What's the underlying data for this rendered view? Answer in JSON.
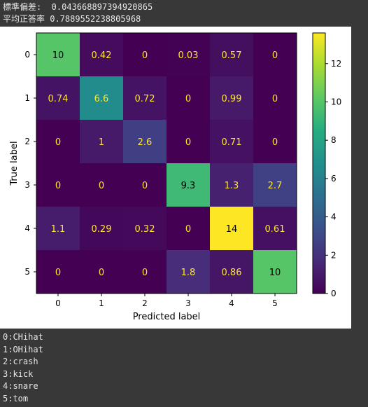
{
  "stats": {
    "std_text": "標準偏差:  0.043668897394920865",
    "acc_text": "平均正答率 0.7889552238805968"
  },
  "chart_data": {
    "type": "heatmap",
    "title": "",
    "xlabel": "Predicted label",
    "ylabel": "True label",
    "x_ticks": [
      "0",
      "1",
      "2",
      "3",
      "4",
      "5"
    ],
    "y_ticks": [
      "0",
      "1",
      "2",
      "3",
      "4",
      "5"
    ],
    "cell_labels": [
      [
        "10",
        "0.42",
        "0",
        "0.03",
        "0.57",
        "0"
      ],
      [
        "0.74",
        "6.6",
        "0.72",
        "0",
        "0.99",
        "0"
      ],
      [
        "0",
        "1",
        "2.6",
        "0",
        "0.71",
        "0"
      ],
      [
        "0",
        "0",
        "0",
        "9.3",
        "1.3",
        "2.7"
      ],
      [
        "1.1",
        "0.29",
        "0.32",
        "0",
        "14",
        "0.61"
      ],
      [
        "0",
        "0",
        "0",
        "1.8",
        "0.86",
        "10"
      ]
    ],
    "values": [
      [
        10,
        0.42,
        0,
        0.03,
        0.57,
        0
      ],
      [
        0.74,
        6.6,
        0.72,
        0,
        0.99,
        0
      ],
      [
        0,
        1,
        2.6,
        0,
        0.71,
        0
      ],
      [
        0,
        0,
        0,
        9.3,
        1.3,
        2.7
      ],
      [
        1.1,
        0.29,
        0.32,
        0,
        14,
        0.61
      ],
      [
        0,
        0,
        0,
        1.8,
        0.86,
        10
      ]
    ],
    "colormap": "viridis",
    "colorbar": {
      "min": 0,
      "max": 13.6,
      "ticks": [
        0,
        2,
        4,
        6,
        8,
        10,
        12
      ]
    },
    "text_colors": {
      "dark_cell": "#fde725",
      "light_cell": "#000000"
    }
  },
  "legend_lines": [
    "0:CHihat",
    "1:OHihat",
    "2:crash",
    "3:kick",
    "4:snare",
    "5:tom"
  ]
}
